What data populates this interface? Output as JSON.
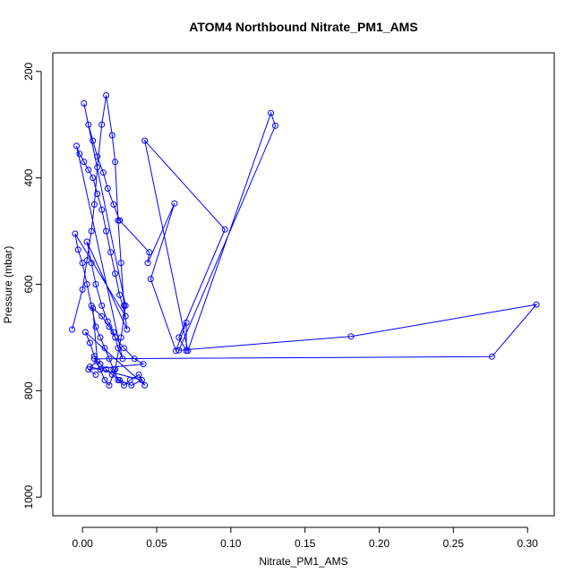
{
  "chart_data": {
    "type": "line",
    "title": "ATOM4 Northbound Nitrate_PM1_AMS",
    "xlabel": "Nitrate_PM1_AMS",
    "ylabel": "Pressure (mbar)",
    "xlim": [
      -0.02,
      0.318
    ],
    "ylim": [
      1035,
      165
    ],
    "y_reversed": true,
    "x_ticks": [
      0.0,
      0.05,
      0.1,
      0.15,
      0.2,
      0.25,
      0.3
    ],
    "x_tick_labels": [
      "0.00",
      "0.05",
      "0.10",
      "0.15",
      "0.20",
      "0.25",
      "0.30"
    ],
    "y_ticks": [
      200,
      400,
      600,
      800,
      1000
    ],
    "y_tick_labels": [
      "200",
      "400",
      "600",
      "800",
      "1000"
    ],
    "grid": false,
    "colors": {
      "series": "#0000ff",
      "axes": "#000000"
    },
    "series": [
      {
        "x": [
          -0.007,
          0.0,
          0.003,
          0.006,
          0.008,
          0.01,
          0.013,
          0.016,
          0.02,
          0.022,
          0.024,
          0.026,
          0.028,
          0.03,
          0.003,
          0.006,
          0.009,
          0.013,
          0.017,
          0.021,
          0.024,
          0.027,
          -0.004,
          -0.002,
          0.001,
          0.004,
          0.007,
          0.01,
          0.013,
          0.016,
          0.019,
          0.022,
          0.025,
          0.029,
          -0.005,
          -0.003,
          0.0,
          0.003,
          0.006,
          0.009,
          0.012,
          0.015,
          0.018,
          0.021,
          0.024,
          0.028,
          0.032,
          0.038,
          0.042,
          0.002,
          0.005,
          0.008,
          0.012,
          0.015,
          0.018,
          0.022,
          0.026,
          0.029,
          0.001,
          0.004,
          0.007,
          0.01,
          0.014,
          0.017,
          0.021,
          0.025,
          0.045,
          0.044,
          0.062,
          0.046,
          0.063,
          0.07,
          0.07,
          0.065,
          0.096,
          0.042,
          0.071,
          0.127,
          0.13,
          0.065,
          0.181,
          0.306,
          0.276,
          0.008,
          0.012,
          0.016,
          0.02,
          0.025,
          0.033,
          0.04,
          0.005,
          0.01,
          0.007,
          0.013,
          0.018,
          0.022,
          0.028,
          0.035,
          0.041,
          0.004,
          0.009
        ],
        "y": [
          685,
          610,
          555,
          500,
          450,
          380,
          300,
          245,
          320,
          370,
          480,
          560,
          640,
          685,
          520,
          560,
          600,
          640,
          670,
          690,
          720,
          740,
          340,
          355,
          370,
          385,
          400,
          430,
          460,
          500,
          540,
          580,
          620,
          660,
          505,
          535,
          560,
          600,
          640,
          680,
          700,
          720,
          740,
          760,
          780,
          790,
          780,
          770,
          790,
          690,
          710,
          735,
          760,
          780,
          790,
          760,
          700,
          640,
          260,
          300,
          330,
          360,
          390,
          420,
          450,
          480,
          540,
          560,
          448,
          590,
          725,
          672,
          725,
          700,
          497,
          330,
          725,
          278,
          302,
          724,
          698,
          638,
          736,
          740,
          750,
          760,
          770,
          780,
          790,
          780,
          755,
          745,
          645,
          660,
          680,
          700,
          720,
          740,
          750,
          760,
          770
        ]
      }
    ]
  }
}
